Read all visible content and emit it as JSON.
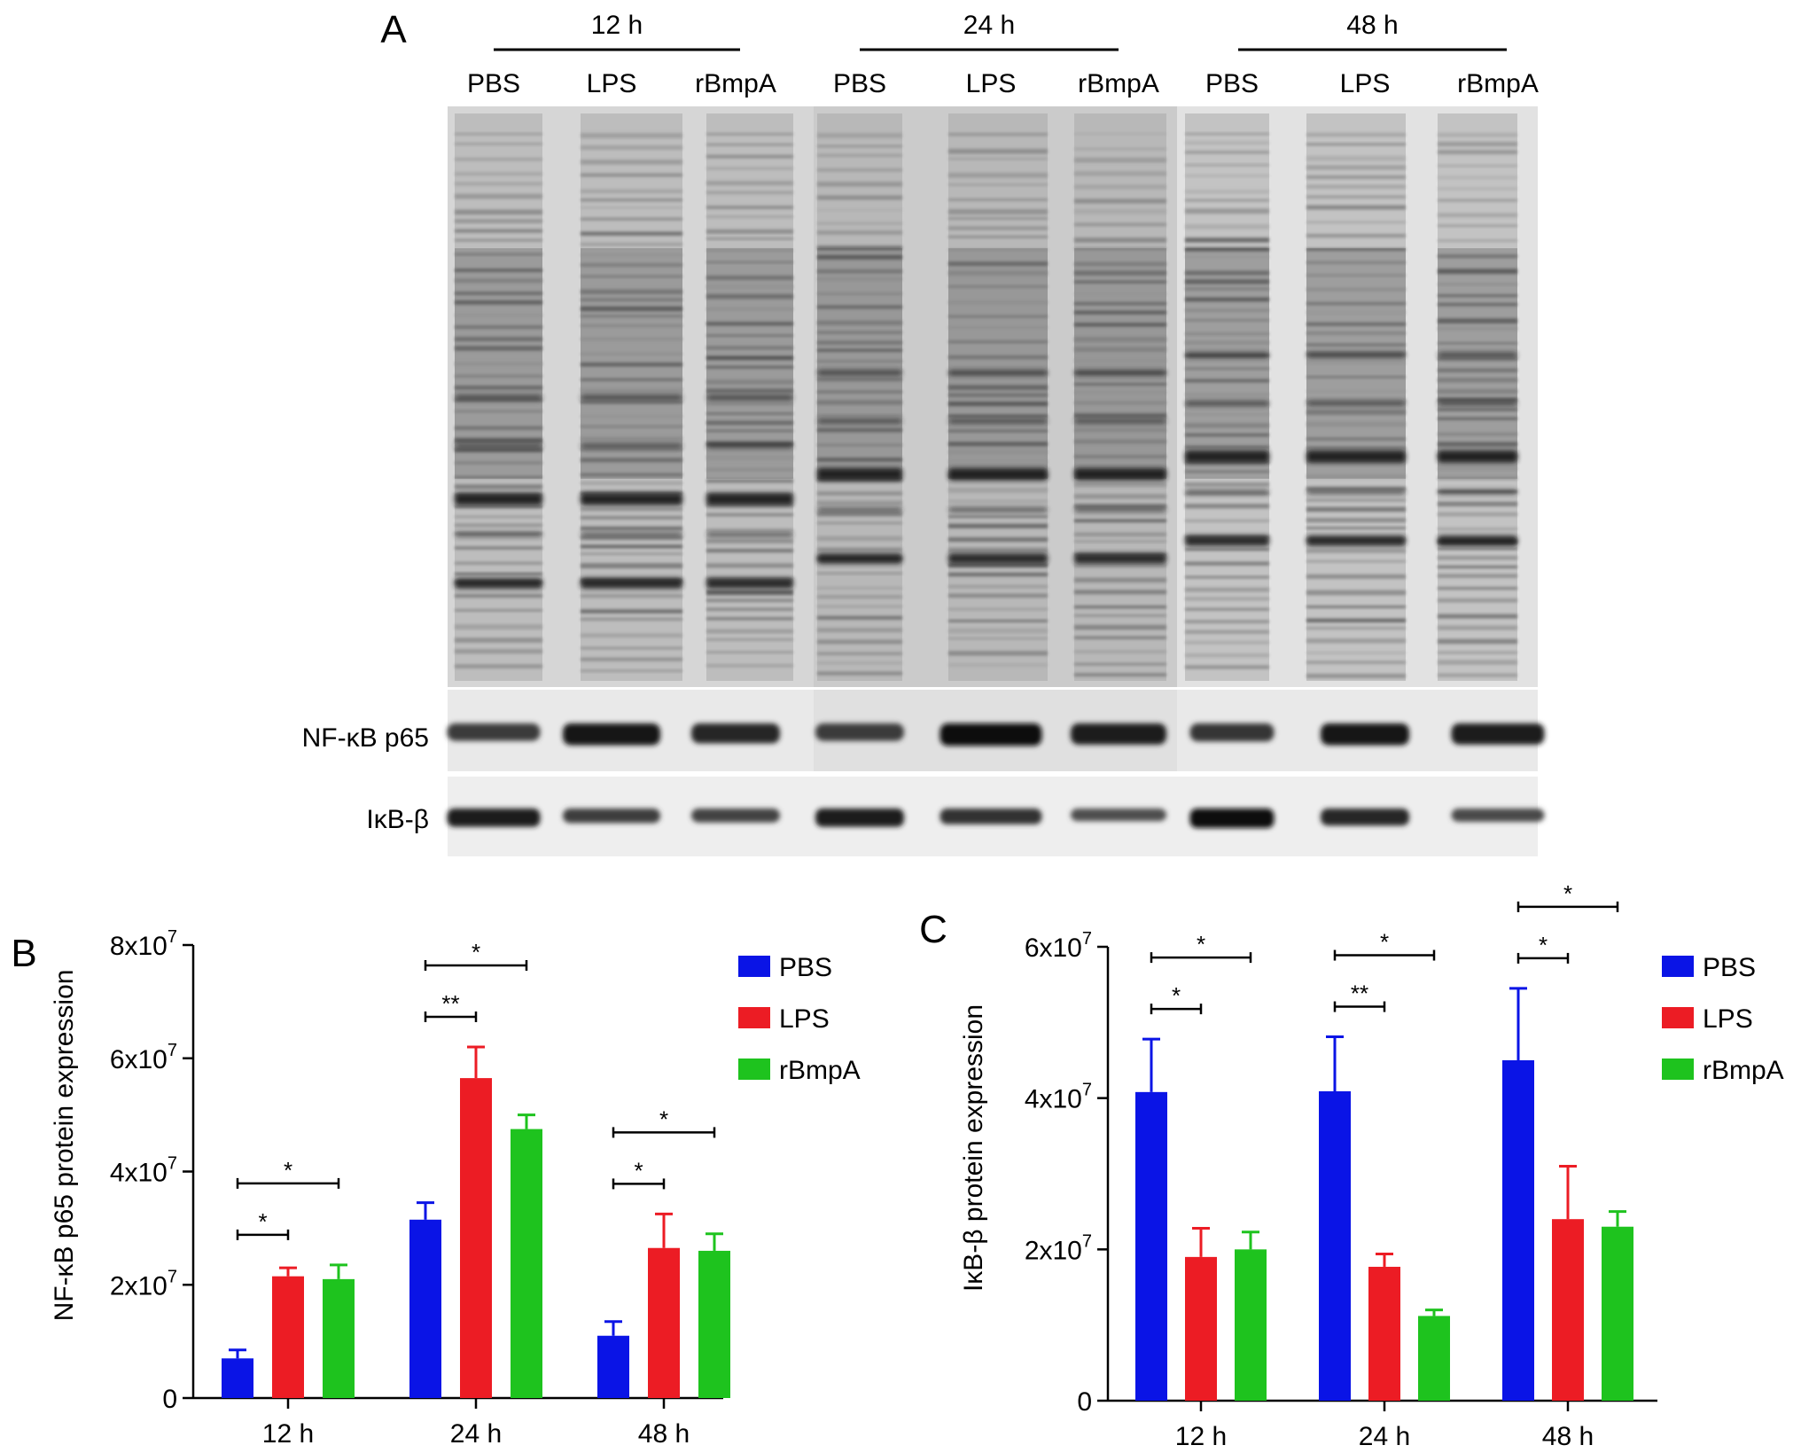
{
  "panel_a": {
    "letter": "A",
    "groups": [
      {
        "label": "12 h",
        "lanes": [
          "PBS",
          "LPS",
          "rBmpA"
        ]
      },
      {
        "label": "24 h",
        "lanes": [
          "PBS",
          "LPS",
          "rBmpA"
        ]
      },
      {
        "label": "48 h",
        "lanes": [
          "PBS",
          "LPS",
          "rBmpA"
        ]
      }
    ],
    "blot_labels": [
      "NF-κB p65",
      "IκB-β"
    ],
    "p65_band_intensity": [
      0.55,
      0.9,
      0.75,
      0.55,
      0.95,
      0.85,
      0.6,
      0.9,
      0.85
    ],
    "ikb_band_intensity": [
      0.9,
      0.6,
      0.55,
      0.9,
      0.7,
      0.45,
      1.0,
      0.8,
      0.5
    ]
  },
  "colors": {
    "PBS": "#0a14e6",
    "LPS": "#ec1c24",
    "rBmpA": "#1ec31e"
  },
  "chart_data": [
    {
      "panel": "B",
      "type": "bar",
      "ylabel": "NF-κB p65 protein expression",
      "categories": [
        "12 h",
        "24 h",
        "48 h"
      ],
      "ylim": [
        0,
        80000000
      ],
      "y_ticks": [
        "0",
        "2x10",
        "4x10",
        "6x10",
        "8x10"
      ],
      "y_tick_exponent": "7",
      "legend_position": "top-right",
      "series": [
        {
          "name": "PBS",
          "values": [
            7000000,
            31500000,
            11000000
          ],
          "errors": [
            1500000,
            3000000,
            2500000
          ]
        },
        {
          "name": "LPS",
          "values": [
            21500000,
            56500000,
            26500000
          ],
          "errors": [
            1500000,
            5500000,
            6000000
          ]
        },
        {
          "name": "rBmpA",
          "values": [
            21000000,
            47500000,
            26000000
          ],
          "errors": [
            2500000,
            2500000,
            3000000
          ]
        }
      ],
      "significance": [
        {
          "category": 0,
          "from": 0,
          "to": 1,
          "label": "*"
        },
        {
          "category": 0,
          "from": 0,
          "to": 2,
          "label": "*"
        },
        {
          "category": 1,
          "from": 0,
          "to": 1,
          "label": "**"
        },
        {
          "category": 1,
          "from": 0,
          "to": 2,
          "label": "*"
        },
        {
          "category": 2,
          "from": 0,
          "to": 1,
          "label": "*"
        },
        {
          "category": 2,
          "from": 0,
          "to": 2,
          "label": "*"
        }
      ]
    },
    {
      "panel": "C",
      "type": "bar",
      "ylabel": "IκB-β protein expression",
      "categories": [
        "12 h",
        "24 h",
        "48 h"
      ],
      "ylim": [
        0,
        60000000
      ],
      "y_ticks": [
        "0",
        "2x10",
        "4x10",
        "6x10"
      ],
      "y_tick_exponent": "7",
      "legend_position": "top-right",
      "series": [
        {
          "name": "PBS",
          "values": [
            40800000,
            40900000,
            45000000
          ],
          "errors": [
            7000000,
            7200000,
            9500000
          ]
        },
        {
          "name": "LPS",
          "values": [
            19000000,
            17700000,
            24000000
          ],
          "errors": [
            3800000,
            1700000,
            7000000
          ]
        },
        {
          "name": "rBmpA",
          "values": [
            20000000,
            11200000,
            23000000
          ],
          "errors": [
            2300000,
            800000,
            2000000
          ]
        }
      ],
      "significance": [
        {
          "category": 0,
          "from": 0,
          "to": 1,
          "label": "*"
        },
        {
          "category": 0,
          "from": 0,
          "to": 2,
          "label": "*"
        },
        {
          "category": 1,
          "from": 0,
          "to": 1,
          "label": "**"
        },
        {
          "category": 1,
          "from": 0,
          "to": 2,
          "label": "*"
        },
        {
          "category": 2,
          "from": 0,
          "to": 1,
          "label": "*"
        },
        {
          "category": 2,
          "from": 0,
          "to": 2,
          "label": "*"
        }
      ]
    }
  ]
}
